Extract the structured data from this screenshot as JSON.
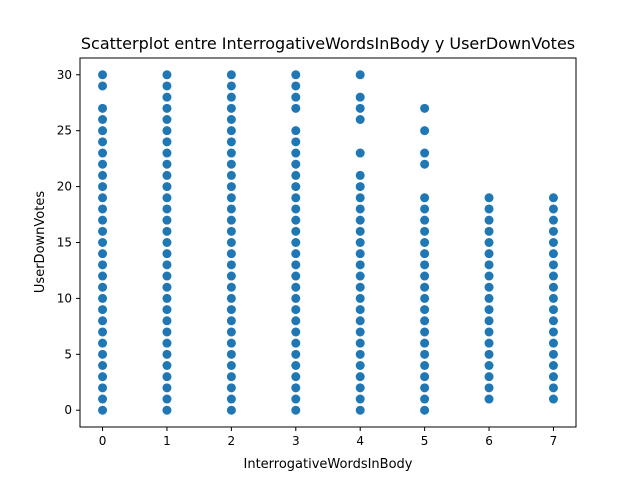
{
  "chart_data": {
    "type": "scatter",
    "title": "Scatterplot entre InterrogativeWordsInBody y UserDownVotes",
    "xlabel": "InterrogativeWordsInBody",
    "ylabel": "UserDownVotes",
    "xlim": [
      -0.35,
      7.35
    ],
    "ylim": [
      -1.5,
      31.5
    ],
    "xticks": [
      0,
      1,
      2,
      3,
      4,
      5,
      6,
      7
    ],
    "yticks": [
      0,
      5,
      10,
      15,
      20,
      25,
      30
    ],
    "grid": false,
    "marker_color": "#1f77b4",
    "columns": [
      {
        "x": 0,
        "ys": [
          0,
          1,
          2,
          3,
          4,
          5,
          6,
          7,
          8,
          9,
          10,
          11,
          12,
          13,
          14,
          15,
          16,
          17,
          18,
          19,
          20,
          21,
          22,
          23,
          24,
          25,
          26,
          27,
          29,
          30
        ]
      },
      {
        "x": 1,
        "ys": [
          0,
          1,
          2,
          3,
          4,
          5,
          6,
          7,
          8,
          9,
          10,
          11,
          12,
          13,
          14,
          15,
          16,
          17,
          18,
          19,
          20,
          21,
          22,
          23,
          24,
          25,
          26,
          27,
          28,
          29,
          30
        ]
      },
      {
        "x": 2,
        "ys": [
          0,
          1,
          2,
          3,
          4,
          5,
          6,
          7,
          8,
          9,
          10,
          11,
          12,
          13,
          14,
          15,
          16,
          17,
          18,
          19,
          20,
          21,
          22,
          23,
          24,
          25,
          26,
          27,
          28,
          29,
          30
        ]
      },
      {
        "x": 3,
        "ys": [
          0,
          1,
          2,
          3,
          4,
          5,
          6,
          7,
          8,
          9,
          10,
          11,
          12,
          13,
          14,
          15,
          16,
          17,
          18,
          19,
          20,
          21,
          22,
          23,
          24,
          25,
          27,
          28,
          29,
          30
        ]
      },
      {
        "x": 4,
        "ys": [
          0,
          1,
          2,
          3,
          4,
          5,
          6,
          7,
          8,
          9,
          10,
          11,
          12,
          13,
          14,
          15,
          16,
          17,
          18,
          19,
          20,
          21,
          23,
          26,
          27,
          28,
          30
        ]
      },
      {
        "x": 5,
        "ys": [
          0,
          1,
          2,
          3,
          4,
          5,
          6,
          7,
          8,
          9,
          10,
          11,
          12,
          13,
          14,
          15,
          16,
          17,
          18,
          19,
          22,
          23,
          25,
          27
        ]
      },
      {
        "x": 6,
        "ys": [
          1,
          2,
          3,
          4,
          5,
          6,
          7,
          8,
          9,
          10,
          11,
          12,
          13,
          14,
          15,
          16,
          17,
          18,
          19
        ]
      },
      {
        "x": 7,
        "ys": [
          1,
          2,
          3,
          4,
          5,
          6,
          7,
          8,
          9,
          10,
          11,
          12,
          13,
          14,
          15,
          16,
          17,
          18,
          19
        ]
      }
    ]
  }
}
